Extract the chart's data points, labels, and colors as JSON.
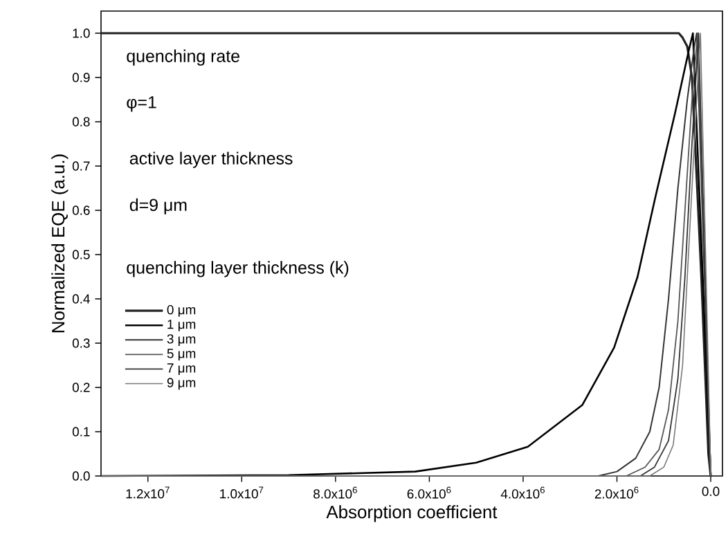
{
  "chart_data": {
    "type": "line",
    "xlabel": "Absorption coefficient",
    "ylabel": "Normalized EQE (a.u.)",
    "legend_title": "quenching layer thickness (k)",
    "annotations": [
      "quenching rate",
      "φ=1",
      "active layer thickness",
      "d=9 μm"
    ],
    "xlim": [
      13000000,
      -250000
    ],
    "ylim": [
      0,
      1.05
    ],
    "xticks": [
      {
        "value": 12000000,
        "label": "1.2x10$^{7}$"
      },
      {
        "value": 10000000,
        "label": "1.0x10$^{7}$"
      },
      {
        "value": 8000000,
        "label": "8.0x10$^{6}$"
      },
      {
        "value": 6000000,
        "label": "6.0x10$^{6}$"
      },
      {
        "value": 4000000,
        "label": "4.0x10$^{6}$"
      },
      {
        "value": 2000000,
        "label": "2.0x10$^{6}$"
      },
      {
        "value": 0,
        "label": "0.0"
      }
    ],
    "yticks": [
      {
        "value": 0,
        "label": "0.0"
      },
      {
        "value": 0.1,
        "label": "0.1"
      },
      {
        "value": 0.2,
        "label": "0.2"
      },
      {
        "value": 0.3,
        "label": "0.3"
      },
      {
        "value": 0.4,
        "label": "0.4"
      },
      {
        "value": 0.5,
        "label": "0.5"
      },
      {
        "value": 0.6,
        "label": "0.6"
      },
      {
        "value": 0.7,
        "label": "0.7"
      },
      {
        "value": 0.8,
        "label": "0.8"
      },
      {
        "value": 0.9,
        "label": "0.9"
      },
      {
        "value": 1.0,
        "label": "1.0"
      }
    ],
    "legend": "left",
    "marker": "none",
    "line_style": "solid",
    "series": [
      {
        "name": "0 μm",
        "color": "#222222",
        "x": [
          13000000,
          2000000,
          900000,
          680000,
          600000,
          500000,
          400000,
          200000,
          50000,
          0
        ],
        "values": [
          1.0,
          1.0,
          1.0,
          1.0,
          0.99,
          0.97,
          0.9,
          0.45,
          0.05,
          0
        ]
      },
      {
        "name": "1 μm",
        "color": "#000000",
        "x": [
          13000000,
          9000000,
          6300000,
          5000000,
          3900000,
          2740000,
          2060000,
          1560000,
          1180000,
          760000,
          470000,
          380000,
          0
        ],
        "values": [
          0,
          0.002,
          0.01,
          0.03,
          0.066,
          0.16,
          0.29,
          0.45,
          0.63,
          0.82,
          0.96,
          1.0,
          0
        ]
      },
      {
        "name": "3 μm",
        "color": "#333333",
        "x": [
          13000000,
          2400000,
          2000000,
          1600000,
          1300000,
          1100000,
          900000,
          700000,
          500000,
          350000,
          300000,
          0
        ],
        "values": [
          0,
          0,
          0.01,
          0.04,
          0.1,
          0.2,
          0.4,
          0.65,
          0.85,
          0.97,
          1.0,
          0
        ]
      },
      {
        "name": "5 μm",
        "color": "#555555",
        "x": [
          13000000,
          1800000,
          1400000,
          1100000,
          900000,
          700000,
          550000,
          400000,
          280000,
          0
        ],
        "values": [
          0,
          0,
          0.02,
          0.06,
          0.15,
          0.35,
          0.6,
          0.85,
          1.0,
          0
        ]
      },
      {
        "name": "7 μm",
        "color": "#333333",
        "x": [
          13000000,
          1500000,
          1200000,
          900000,
          700000,
          550000,
          400000,
          260000,
          0
        ],
        "values": [
          0,
          0,
          0.02,
          0.08,
          0.22,
          0.45,
          0.75,
          1.0,
          0
        ]
      },
      {
        "name": "9 μm",
        "color": "#777777",
        "x": [
          13000000,
          1300000,
          1000000,
          800000,
          600000,
          450000,
          300000,
          220000,
          0
        ],
        "values": [
          0,
          0,
          0.02,
          0.07,
          0.25,
          0.55,
          0.85,
          1.0,
          0
        ]
      }
    ]
  }
}
